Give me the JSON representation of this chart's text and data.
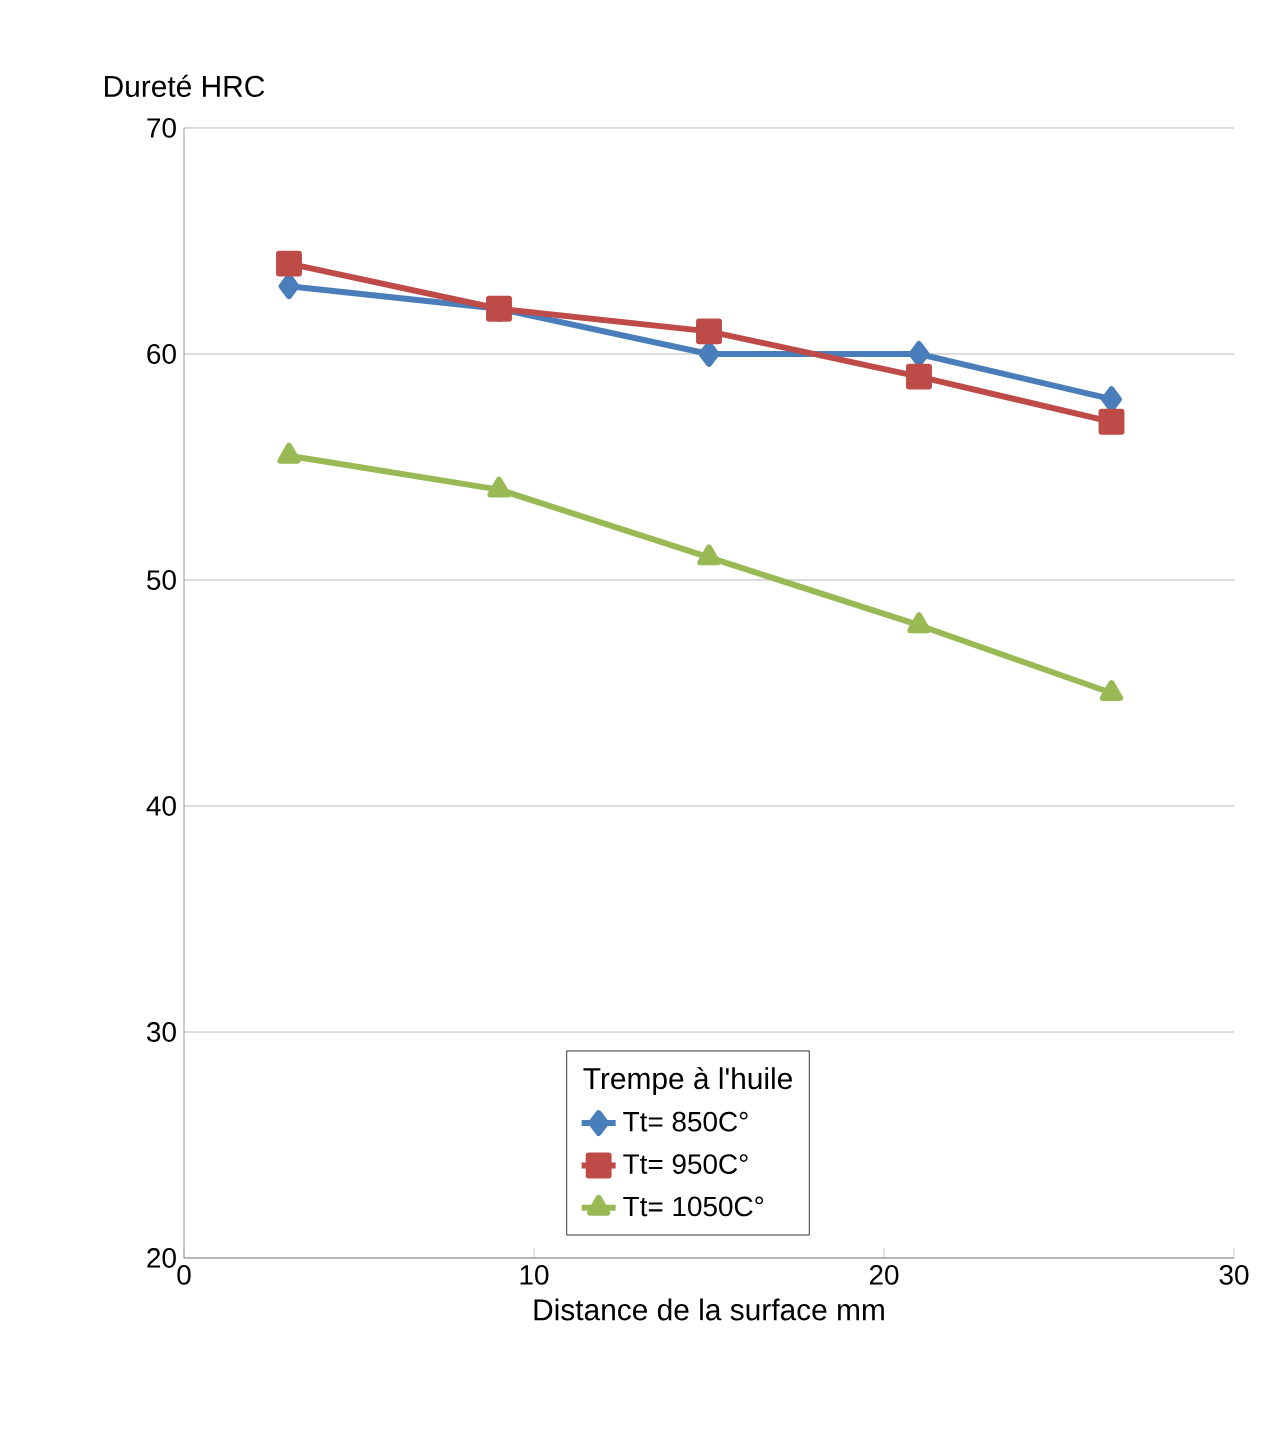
{
  "chart_data": {
    "type": "line",
    "ylabel": "Dureté HRC",
    "xlabel": "Distance de la surface mm",
    "legend_title": "Trempe à l'huile",
    "x": [
      3,
      9,
      15,
      21,
      26.5
    ],
    "series": [
      {
        "name": "Tt= 850C°",
        "color": "#4a7ebb",
        "marker": "diamond",
        "values": [
          63,
          62,
          60,
          60,
          58
        ]
      },
      {
        "name": "Tt= 950C°",
        "color": "#be4b48",
        "marker": "square",
        "values": [
          64,
          62,
          61,
          59,
          57
        ]
      },
      {
        "name": "Tt= 1050C°",
        "color": "#98b954",
        "marker": "triangle",
        "values": [
          55.5,
          54,
          51,
          48,
          45
        ]
      }
    ],
    "xlim": [
      0,
      30
    ],
    "xticks": [
      0,
      10,
      20,
      30
    ],
    "ylim": [
      20,
      70
    ],
    "yticks": [
      20,
      30,
      40,
      50,
      60,
      70
    ],
    "grid": "y",
    "legend": "bottom",
    "line_style": "solid"
  }
}
